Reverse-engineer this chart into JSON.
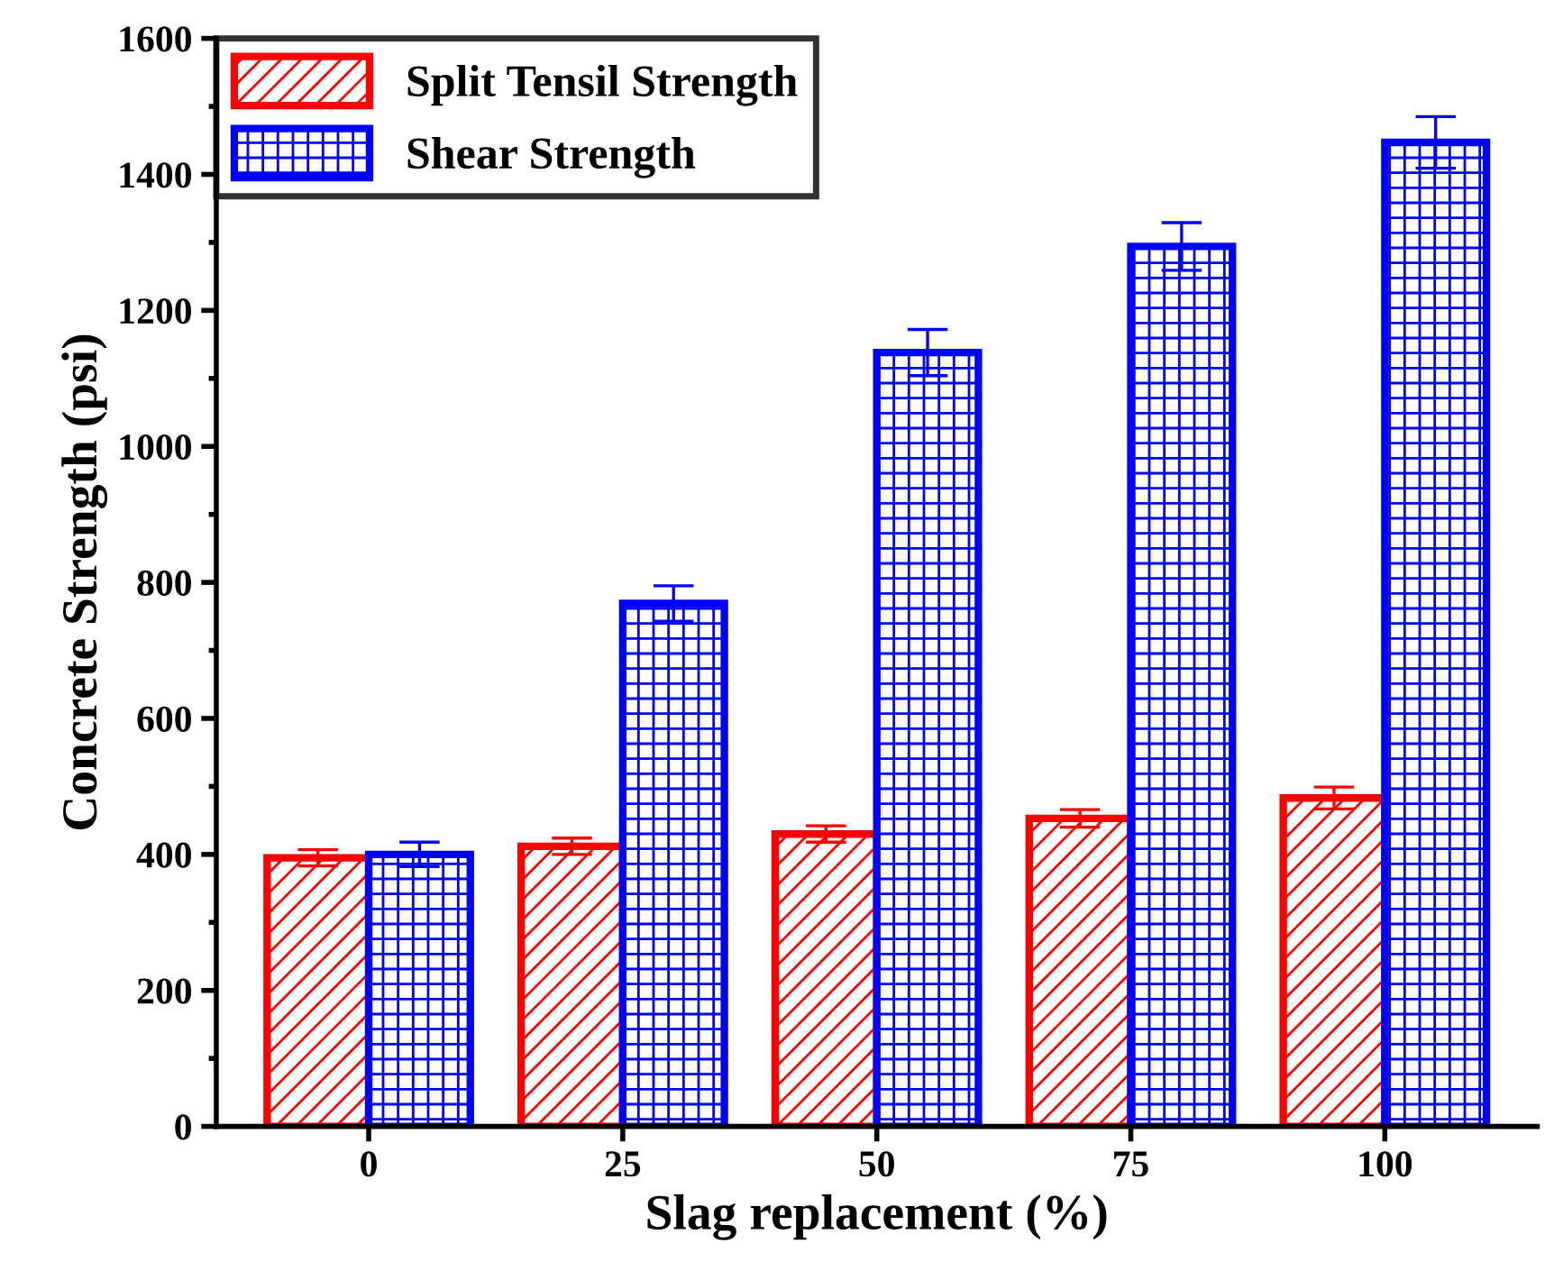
{
  "chart_data": {
    "type": "bar",
    "xlabel": "Slag replacement (%)",
    "ylabel": "Concrete Strength (psi)",
    "categories": [
      "0",
      "25",
      "50",
      "75",
      "100"
    ],
    "series": [
      {
        "name": "Split Tensil Strength",
        "color": "#ff0000",
        "values": [
          395,
          412,
          430,
          453,
          483
        ],
        "errors": [
          12,
          12,
          12,
          13,
          16
        ]
      },
      {
        "name": "Shear Strength",
        "color": "#0000ff",
        "values": [
          400,
          769,
          1138,
          1294,
          1447
        ],
        "errors": [
          18,
          26,
          34,
          35,
          38
        ]
      }
    ],
    "ylim": [
      0,
      1600
    ],
    "yticks": [
      0,
      200,
      400,
      600,
      800,
      1000,
      1200,
      1400,
      1600
    ],
    "legend": "top left",
    "grid": false
  }
}
